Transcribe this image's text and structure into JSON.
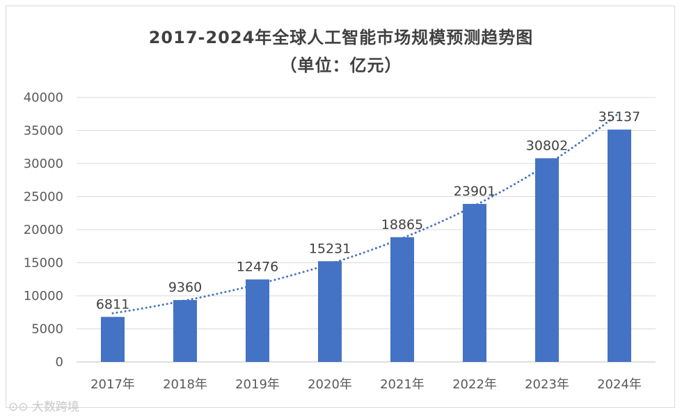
{
  "chart_data": {
    "type": "bar",
    "title": "2017-2024年全球人工智能市场规模预测趋势图",
    "subtitle": "（单位：亿元）",
    "categories": [
      "2017年",
      "2018年",
      "2019年",
      "2020年",
      "2021年",
      "2022年",
      "2023年",
      "2024年"
    ],
    "values": [
      6811,
      9360,
      12476,
      15231,
      18865,
      23901,
      30802,
      35137
    ],
    "yticks": [
      0,
      5000,
      10000,
      15000,
      20000,
      25000,
      30000,
      35000,
      40000
    ],
    "ylim": [
      0,
      40000
    ],
    "xlabel": "",
    "ylabel": "",
    "grid": true,
    "trendline": "exponential, dotted",
    "bar_color": "#4472C4"
  },
  "watermark": "大数跨境"
}
